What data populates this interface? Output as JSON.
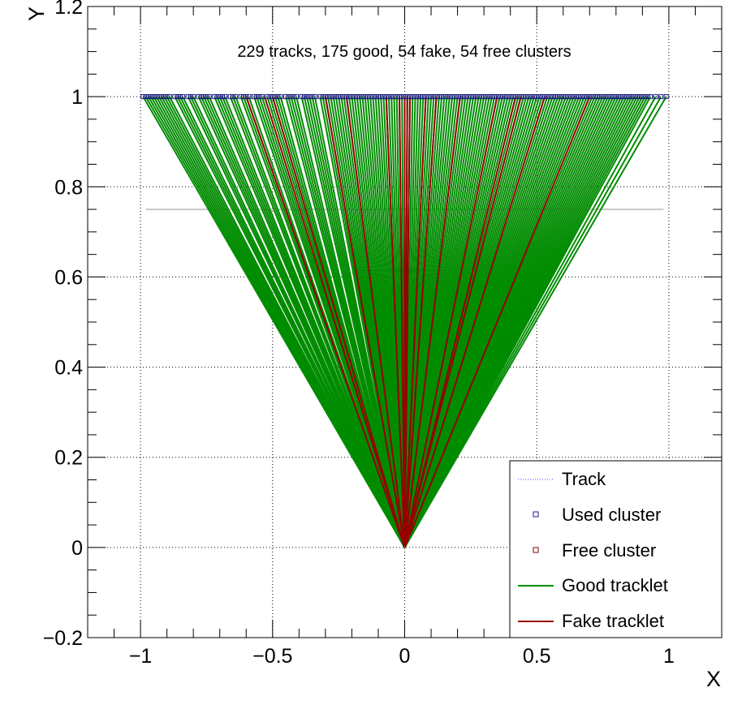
{
  "chart_data": {
    "type": "line",
    "title": "",
    "annotation": "229 tracks, 175 good, 54 fake, 54 free clusters",
    "xlabel": "X",
    "ylabel": "Y",
    "xlim": [
      -1.2,
      1.2
    ],
    "ylim": [
      -0.2,
      1.2
    ],
    "x_ticks": [
      -1,
      -0.5,
      0,
      0.5,
      1
    ],
    "x_tick_labels": [
      "−1",
      "−0.5",
      "0",
      "0.5",
      "1"
    ],
    "y_ticks": [
      -0.2,
      0,
      0.2,
      0.4,
      0.6,
      0.8,
      1,
      1.2
    ],
    "y_tick_labels": [
      "−0.2",
      "0",
      "0.2",
      "0.4",
      "0.6",
      "0.8",
      "1",
      "1.2"
    ],
    "grid": true,
    "legend_position": "bottom-right",
    "legend": [
      {
        "label": "Track",
        "style": "dotted-line",
        "color": "#5a3fff"
      },
      {
        "label": "Used cluster",
        "style": "open-square",
        "color": "#1a1a80"
      },
      {
        "label": "Free cluster",
        "style": "open-square",
        "color": "#8b0000"
      },
      {
        "label": "Good tracklet",
        "style": "line",
        "color": "#008c00"
      },
      {
        "label": "Fake tracklet",
        "style": "line",
        "color": "#960000"
      }
    ],
    "layer_lines": [
      {
        "y": 0.75,
        "x_range": [
          -0.98,
          0.98
        ],
        "color": "#c8c8c8"
      }
    ],
    "origin": [
      0,
      0
    ],
    "series": [
      {
        "name": "Good tracklet",
        "color": "#008c00",
        "end_y": 1.0,
        "end_x": [
          -0.99,
          -0.98,
          -0.97,
          -0.96,
          -0.95,
          -0.94,
          -0.93,
          -0.92,
          -0.91,
          -0.9,
          -0.89,
          -0.87,
          -0.86,
          -0.85,
          -0.84,
          -0.82,
          -0.81,
          -0.8,
          -0.78,
          -0.77,
          -0.76,
          -0.75,
          -0.74,
          -0.72,
          -0.71,
          -0.7,
          -0.69,
          -0.68,
          -0.66,
          -0.65,
          -0.64,
          -0.62,
          -0.61,
          -0.6,
          -0.59,
          -0.57,
          -0.56,
          -0.55,
          -0.54,
          -0.52,
          -0.51,
          -0.5,
          -0.49,
          -0.48,
          -0.47,
          -0.45,
          -0.44,
          -0.43,
          -0.42,
          -0.41,
          -0.39,
          -0.38,
          -0.37,
          -0.36,
          -0.35,
          -0.34,
          -0.32,
          -0.31,
          -0.3,
          -0.29,
          -0.28,
          -0.27,
          -0.26,
          -0.25,
          -0.24,
          -0.23,
          -0.22,
          -0.21,
          -0.2,
          -0.19,
          -0.18,
          -0.17,
          -0.16,
          -0.15,
          -0.14,
          -0.13,
          -0.12,
          -0.11,
          -0.1,
          -0.09,
          -0.08,
          -0.07,
          -0.06,
          -0.05,
          -0.04,
          -0.03,
          -0.02,
          -0.01,
          0.0,
          0.01,
          0.02,
          0.03,
          0.04,
          0.05,
          0.06,
          0.07,
          0.08,
          0.09,
          0.1,
          0.11,
          0.12,
          0.13,
          0.14,
          0.15,
          0.16,
          0.17,
          0.18,
          0.19,
          0.2,
          0.21,
          0.22,
          0.23,
          0.24,
          0.25,
          0.26,
          0.27,
          0.28,
          0.29,
          0.3,
          0.31,
          0.32,
          0.33,
          0.34,
          0.35,
          0.36,
          0.37,
          0.38,
          0.39,
          0.4,
          0.41,
          0.42,
          0.43,
          0.44,
          0.45,
          0.46,
          0.47,
          0.48,
          0.49,
          0.5,
          0.51,
          0.52,
          0.53,
          0.54,
          0.55,
          0.56,
          0.57,
          0.58,
          0.59,
          0.6,
          0.61,
          0.62,
          0.63,
          0.64,
          0.65,
          0.66,
          0.67,
          0.68,
          0.69,
          0.7,
          0.71,
          0.72,
          0.73,
          0.74,
          0.75,
          0.76,
          0.77,
          0.78,
          0.79,
          0.8,
          0.81,
          0.82,
          0.83,
          0.84,
          0.85,
          0.86,
          0.87,
          0.88,
          0.89,
          0.9,
          0.91,
          0.92,
          0.93,
          0.95,
          0.97,
          0.99
        ]
      },
      {
        "name": "Fake tracklet",
        "color": "#960000",
        "end_y": 1.0,
        "end_x": [
          -0.6,
          -0.53,
          -0.5,
          -0.3,
          -0.22,
          -0.07,
          -0.02,
          0.0,
          0.01,
          0.02,
          0.08,
          0.12,
          0.21,
          0.35,
          0.42,
          0.44,
          0.53,
          0.7
        ]
      }
    ]
  }
}
